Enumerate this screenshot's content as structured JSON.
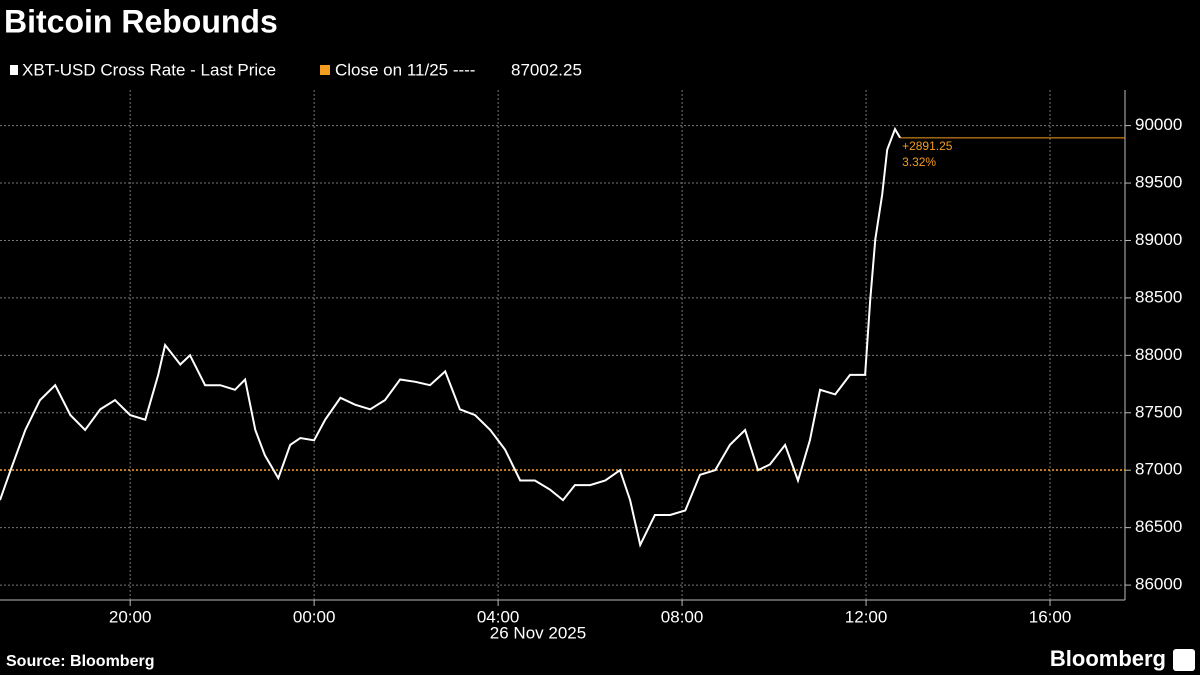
{
  "chart_data": {
    "type": "line",
    "title": "Bitcoin Rebounds",
    "source": "Source: Bloomberg",
    "brand": "Bloomberg",
    "x_sublabel": "26 Nov 2025",
    "x": [
      -6.83,
      -6.6,
      -6.28,
      -5.96,
      -5.63,
      -5.3,
      -4.98,
      -4.65,
      -4.33,
      -4.0,
      -3.67,
      -3.39,
      -3.24,
      -2.91,
      -2.7,
      -2.37,
      -2.04,
      -1.72,
      -1.5,
      -1.28,
      -1.07,
      -0.78,
      -0.52,
      -0.3,
      0,
      0.24,
      0.57,
      0.89,
      1.22,
      1.54,
      1.87,
      2.2,
      2.52,
      2.85,
      3.17,
      3.5,
      3.83,
      4.15,
      4.48,
      4.8,
      5.13,
      5.41,
      5.67,
      6.0,
      6.33,
      6.65,
      6.87,
      7.09,
      7.41,
      7.74,
      8.07,
      8.39,
      8.72,
      9.04,
      9.37,
      9.65,
      9.91,
      10.24,
      10.52,
      10.78,
      11.0,
      11.33,
      11.65,
      11.98,
      12.09,
      12.2,
      12.35,
      12.46,
      12.63,
      12.74
    ],
    "series": [
      {
        "name": "XBT-USD Cross Rate - Last Price",
        "color": "#ffffff",
        "values": [
          86740,
          87000,
          87350,
          87610,
          87740,
          87480,
          87350,
          87530,
          87610,
          87480,
          87440,
          87830,
          88090,
          87920,
          88000,
          87740,
          87740,
          87700,
          87790,
          87350,
          87130,
          86930,
          87220,
          87280,
          87260,
          87440,
          87630,
          87570,
          87530,
          87610,
          87790,
          87770,
          87740,
          87860,
          87530,
          87480,
          87350,
          87180,
          86910,
          86910,
          86830,
          86740,
          86870,
          86870,
          86910,
          87000,
          86740,
          86350,
          86610,
          86610,
          86650,
          86960,
          87000,
          87220,
          87350,
          87000,
          87050,
          87220,
          86910,
          87260,
          87700,
          87660,
          87830,
          87830,
          88480,
          89010,
          89400,
          89790,
          89970,
          89893.5
        ]
      }
    ],
    "reference": {
      "name": "Close on 11/25 ----",
      "value": 87002.25,
      "color": "#f39c1f"
    },
    "annotations": [
      "+2891.25",
      "3.32%"
    ],
    "xlim": [
      -6.83,
      17.63
    ],
    "ylim": [
      85870,
      90310
    ],
    "xticks": [
      {
        "value": -4,
        "label": "20:00"
      },
      {
        "value": 0,
        "label": "00:00"
      },
      {
        "value": 4,
        "label": "04:00"
      },
      {
        "value": 8,
        "label": "08:00"
      },
      {
        "value": 12,
        "label": "12:00"
      },
      {
        "value": 16,
        "label": "16:00"
      }
    ],
    "yticks": [
      86000,
      86500,
      87000,
      87500,
      88000,
      88500,
      89000,
      89500,
      90000
    ],
    "grid": true
  }
}
